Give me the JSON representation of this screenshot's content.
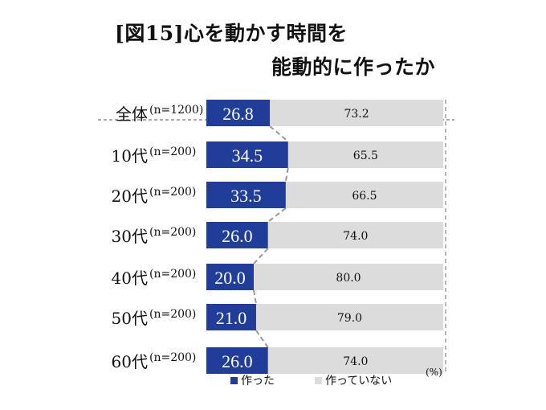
{
  "title_line1": "[図15]心を動かす時間を",
  "title_line2": "能動的に作ったか",
  "unit_label": "(%)",
  "colors": {
    "made": "#1f3d99",
    "not_made": "#dcdcdc",
    "connector": "#999999"
  },
  "chart_data": {
    "type": "bar",
    "orientation": "horizontal",
    "stacked": true,
    "percent": true,
    "title": "[図15]心を動かす時間を 能動的に作ったか",
    "xlim": [
      0,
      100
    ],
    "categories": [
      "全体",
      "10代",
      "20代",
      "30代",
      "40代",
      "50代",
      "60代"
    ],
    "sample_sizes": [
      "(n=1200)",
      "(n=200)",
      "(n=200)",
      "(n=200)",
      "(n=200)",
      "(n=200)",
      "(n=200)"
    ],
    "series": [
      {
        "name": "作った",
        "values": [
          26.8,
          34.5,
          33.5,
          26.0,
          20.0,
          21.0,
          26.0
        ],
        "labels": [
          "26.8",
          "34.5",
          "33.5",
          "26.0",
          "20.0",
          "21.0",
          "26.0"
        ]
      },
      {
        "name": "作っていない",
        "values": [
          73.2,
          65.5,
          66.5,
          74.0,
          80.0,
          79.0,
          74.0
        ],
        "labels": [
          "73.2",
          "65.5",
          "66.5",
          "74.0",
          "80.0",
          "79.0",
          "74.0"
        ]
      }
    ],
    "legend": "bottom",
    "grid": false,
    "separator_after_first": true
  }
}
